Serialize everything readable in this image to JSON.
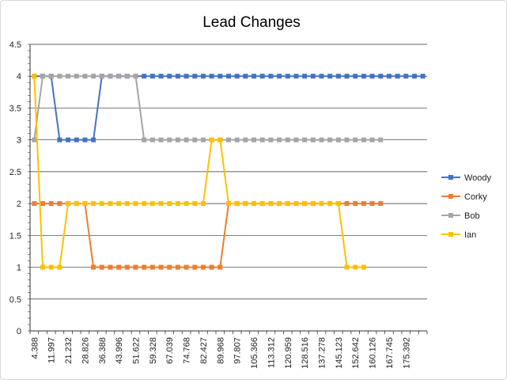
{
  "chart_data": {
    "type": "line",
    "title": "Lead Changes",
    "xlabel": "",
    "ylabel": "",
    "ylim": [
      0,
      4.5
    ],
    "y_ticks": [
      "0",
      "0.5",
      "1",
      "1.5",
      "2",
      "2.5",
      "3",
      "3.5",
      "4",
      "4.5"
    ],
    "y_tick_values": [
      0,
      0.5,
      1,
      1.5,
      2,
      2.5,
      3,
      3.5,
      4,
      4.5
    ],
    "x_tick_labels": [
      "4.388",
      "11.997",
      "21.232",
      "28.826",
      "36.388",
      "43.996",
      "51.622",
      "59.328",
      "67.039",
      "74.768",
      "82.427",
      "89.968",
      "97.807",
      "105.366",
      "113.312",
      "120.959",
      "128.516",
      "137.278",
      "145.123",
      "152.642",
      "160.126",
      "167.745",
      "175.392"
    ],
    "grid": true,
    "legend_position": "right",
    "series": [
      {
        "name": "Woody",
        "color": "#4472C4",
        "values": [
          4,
          4,
          4,
          3,
          3,
          3,
          3,
          3,
          4,
          4,
          4,
          4,
          4,
          4,
          4,
          4,
          4,
          4,
          4,
          4,
          4,
          4,
          4,
          4,
          4,
          4,
          4,
          4,
          4,
          4,
          4,
          4,
          4,
          4,
          4,
          4,
          4,
          4,
          4,
          4,
          4,
          4,
          4,
          4,
          4,
          4,
          4
        ]
      },
      {
        "name": "Corky",
        "color": "#ED7D31",
        "values": [
          2,
          2,
          2,
          2,
          2,
          2,
          2,
          1,
          1,
          1,
          1,
          1,
          1,
          1,
          1,
          1,
          1,
          1,
          1,
          1,
          1,
          1,
          1,
          2,
          2,
          2,
          2,
          2,
          2,
          2,
          2,
          2,
          2,
          2,
          2,
          2,
          2,
          2,
          2,
          2,
          2,
          2
        ]
      },
      {
        "name": "Bob",
        "color": "#A5A5A5",
        "values": [
          3,
          4,
          4,
          4,
          4,
          4,
          4,
          4,
          4,
          4,
          4,
          4,
          4,
          3,
          3,
          3,
          3,
          3,
          3,
          3,
          3,
          3,
          3,
          3,
          3,
          3,
          3,
          3,
          3,
          3,
          3,
          3,
          3,
          3,
          3,
          3,
          3,
          3,
          3,
          3,
          3,
          3
        ]
      },
      {
        "name": "Ian",
        "color": "#FFC000",
        "values": [
          4,
          1,
          1,
          1,
          2,
          2,
          2,
          2,
          2,
          2,
          2,
          2,
          2,
          2,
          2,
          2,
          2,
          2,
          2,
          2,
          2,
          3,
          3,
          2,
          2,
          2,
          2,
          2,
          2,
          2,
          2,
          2,
          2,
          2,
          2,
          2,
          2,
          1,
          1,
          1
        ]
      }
    ]
  }
}
